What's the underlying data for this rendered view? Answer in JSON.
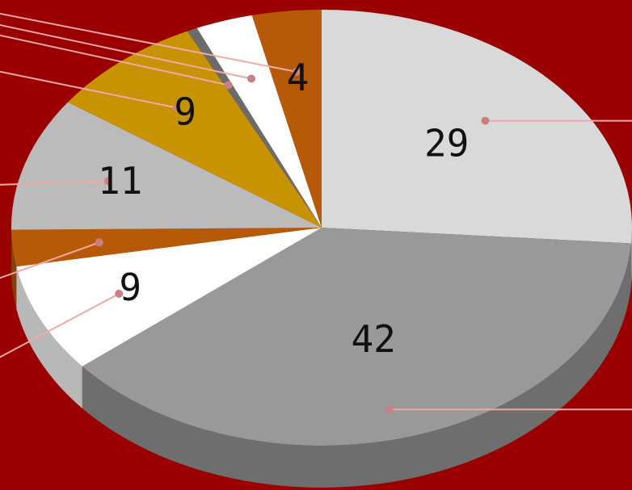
{
  "background": "#9b0000",
  "leader_color": "#f0a8a8",
  "leader_dot_color": "#c98080",
  "chart_data": {
    "type": "pie",
    "style": "3d",
    "title": "",
    "slices": [
      {
        "value": 29,
        "label": "29",
        "color": "#d9d9d9"
      },
      {
        "value": 42,
        "label": "42",
        "color": "#999999"
      },
      {
        "value": 9,
        "label": "9",
        "color": "#ffffff"
      },
      {
        "value": 3,
        "label": "",
        "color": "#b75a08"
      },
      {
        "value": 11,
        "label": "11",
        "color": "#bbbbbb"
      },
      {
        "value": 9,
        "label": "9",
        "color": "#c89300"
      },
      {
        "value": 0.6,
        "label": "",
        "color": "#6b6b6b"
      },
      {
        "value": 3.3,
        "label": "",
        "color": "#ffffff"
      },
      {
        "value": 4,
        "label": "4",
        "color": "#b75a08"
      }
    ]
  }
}
